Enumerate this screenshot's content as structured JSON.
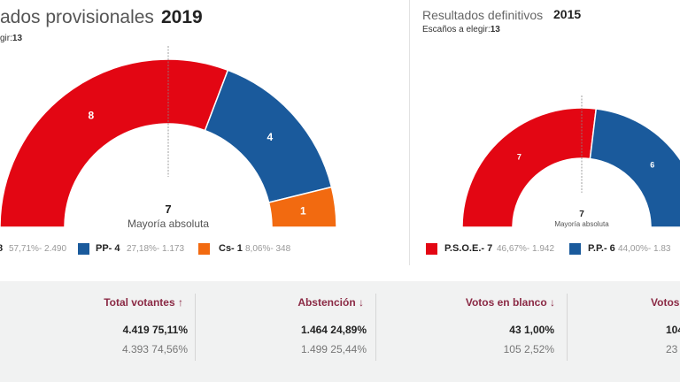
{
  "left_panel": {
    "title": "ados provisionales",
    "year": "2019",
    "seats_label": "gir:",
    "seats_value": "13",
    "majority_value": "7",
    "majority_label": "Mayoría absoluta",
    "parties": [
      {
        "name": "8",
        "seats": 8,
        "stats": "57,71%- 2.490",
        "color": "#e30613"
      },
      {
        "name": "PP- 4",
        "seats": 4,
        "stats": "27,18%- 1.173",
        "color": "#1a5a9c"
      },
      {
        "name": "Cs- 1",
        "seats": 1,
        "stats": "8,06%- 348",
        "color": "#f26a10"
      }
    ]
  },
  "right_panel": {
    "title": "Resultados definitivos",
    "year": "2015",
    "seats_label": "Escaños a elegir:",
    "seats_value": "13",
    "majority_value": "7",
    "majority_label": "Mayoría absoluta",
    "parties": [
      {
        "name": "P.S.O.E.- 7",
        "seats": 7,
        "stats": "46,67%- 1.942",
        "color": "#e30613"
      },
      {
        "name": "P.P.- 6",
        "seats": 6,
        "stats": "44,00%- 1.83",
        "color": "#1a5a9c"
      }
    ]
  },
  "stats": [
    {
      "label": "Total votantes",
      "arrow": "↑",
      "current": "4.419  75,11%",
      "previous": "4.393  74,56%"
    },
    {
      "label": "Abstención",
      "arrow": "↓",
      "current": "1.464  24,89%",
      "previous": "1.499  25,44%"
    },
    {
      "label": "Votos en blanco",
      "arrow": "↓",
      "current": "43  1,00%",
      "previous": "105  2,52%"
    },
    {
      "label": "Votos",
      "arrow": "",
      "current": "104",
      "previous": "23"
    }
  ]
}
